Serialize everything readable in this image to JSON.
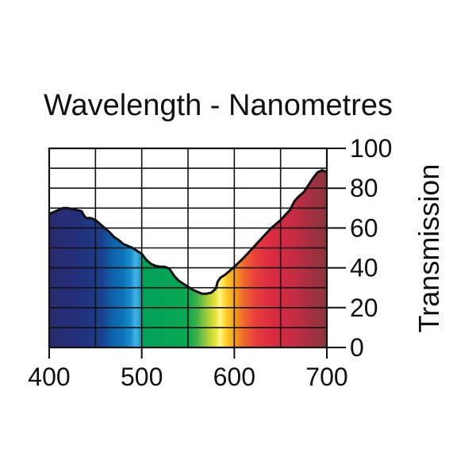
{
  "chart_data": {
    "type": "area",
    "title": "Wavelength - Nanometres",
    "xlabel": "",
    "ylabel": "Transmission",
    "xlim": [
      400,
      700
    ],
    "ylim": [
      0,
      100
    ],
    "x_ticks": [
      400,
      500,
      600,
      700
    ],
    "y_ticks": [
      0,
      20,
      40,
      60,
      80,
      100
    ],
    "x_tick_labels": [
      "400",
      "500",
      "600",
      "700"
    ],
    "y_tick_labels": [
      "0",
      "20",
      "40",
      "60",
      "80",
      "100"
    ],
    "grid": true,
    "y_axis_side": "right",
    "fill": "visible-spectrum-gradient",
    "series": [
      {
        "x": [
          400,
          405,
          410,
          415,
          420,
          425,
          430,
          435,
          438,
          440,
          445,
          450,
          455,
          460,
          465,
          470,
          475,
          480,
          485,
          490,
          495,
          500,
          505,
          510,
          515,
          520,
          525,
          530,
          535,
          540,
          545,
          550,
          555,
          560,
          565,
          570,
          575,
          580,
          582,
          585,
          590,
          595,
          600,
          610,
          620,
          630,
          640,
          650,
          660,
          665,
          670,
          675,
          680,
          685,
          690,
          695,
          700
        ],
        "y": [
          67,
          68,
          69,
          70,
          70,
          69.5,
          69,
          68.5,
          66,
          65,
          65,
          64,
          62,
          60,
          58,
          55.5,
          54,
          52,
          51,
          50,
          48.5,
          47,
          44,
          42,
          41,
          40.5,
          40.5,
          39.5,
          36,
          33.5,
          32,
          30.5,
          29,
          28,
          27,
          27,
          27.5,
          29.5,
          33,
          35,
          36.5,
          38.5,
          40.5,
          45,
          50,
          55,
          60,
          64,
          69,
          73.5,
          76,
          78,
          81.5,
          85,
          88,
          89,
          88
        ]
      }
    ]
  }
}
